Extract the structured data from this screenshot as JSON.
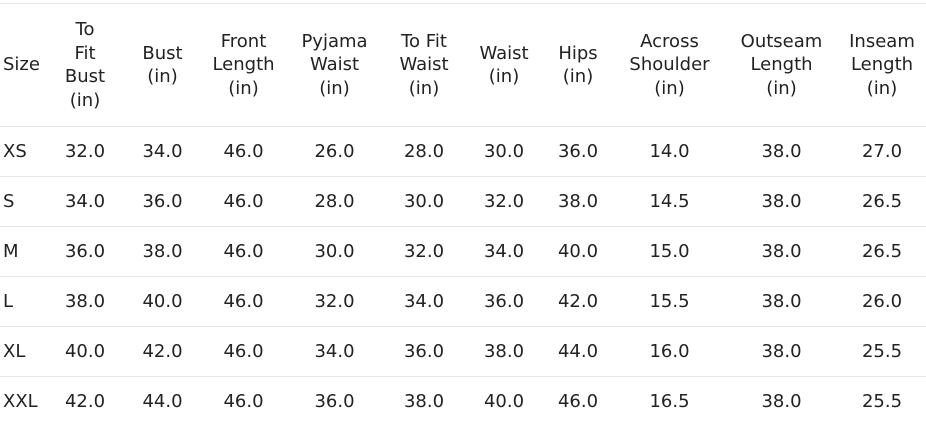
{
  "table": {
    "header": [
      "Size",
      "To\nFit\nBust\n(in)",
      "Bust\n(in)",
      "Front\nLength\n(in)",
      "Pyjama\nWaist\n(in)",
      "To Fit\nWaist\n(in)",
      "Waist\n(in)",
      "Hips\n(in)",
      "Across\nShoulder\n(in)",
      "Outseam\nLength\n(in)",
      "Inseam\nLength\n(in)"
    ],
    "rows": [
      [
        "XS",
        "32.0",
        "34.0",
        "46.0",
        "26.0",
        "28.0",
        "30.0",
        "36.0",
        "14.0",
        "38.0",
        "27.0"
      ],
      [
        "S",
        "34.0",
        "36.0",
        "46.0",
        "28.0",
        "30.0",
        "32.0",
        "38.0",
        "14.5",
        "38.0",
        "26.5"
      ],
      [
        "M",
        "36.0",
        "38.0",
        "46.0",
        "30.0",
        "32.0",
        "34.0",
        "40.0",
        "15.0",
        "38.0",
        "26.5"
      ],
      [
        "L",
        "38.0",
        "40.0",
        "46.0",
        "32.0",
        "34.0",
        "36.0",
        "42.0",
        "15.5",
        "38.0",
        "26.0"
      ],
      [
        "XL",
        "40.0",
        "42.0",
        "46.0",
        "34.0",
        "36.0",
        "38.0",
        "44.0",
        "16.0",
        "38.0",
        "25.5"
      ],
      [
        "XXL",
        "42.0",
        "44.0",
        "46.0",
        "36.0",
        "38.0",
        "40.0",
        "46.0",
        "16.5",
        "38.0",
        "25.5"
      ]
    ]
  }
}
